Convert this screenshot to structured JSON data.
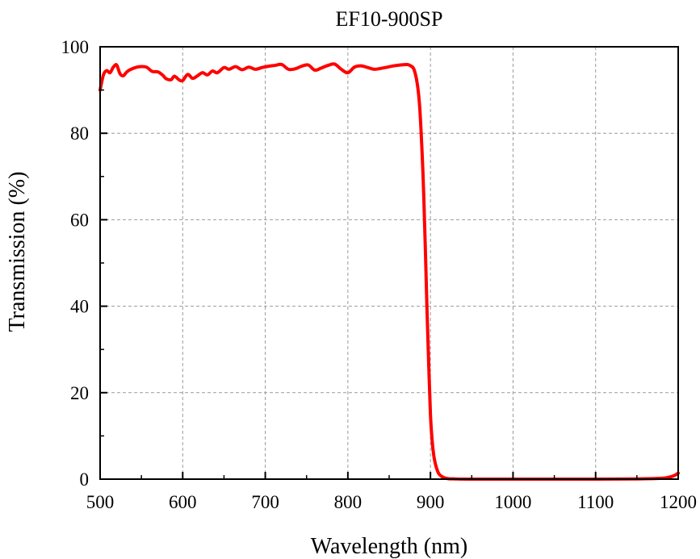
{
  "chart_data": {
    "type": "line",
    "title": "EF10-900SP",
    "xlabel": "Wavelength (nm)",
    "ylabel": "Transmission (%)",
    "xlim": [
      500,
      1200
    ],
    "ylim": [
      0,
      100
    ],
    "x_ticks": [
      500,
      600,
      700,
      800,
      900,
      1000,
      1100,
      1200
    ],
    "y_ticks": [
      0,
      20,
      40,
      60,
      80,
      100
    ],
    "grid": true,
    "series": [
      {
        "color": "#ff0000",
        "x": [
          500,
          504,
          508,
          512,
          516,
          520,
          524,
          528,
          533,
          540,
          548,
          556,
          563,
          570,
          576,
          580,
          586,
          590,
          596,
          600,
          606,
          612,
          618,
          624,
          630,
          636,
          642,
          650,
          656,
          664,
          672,
          680,
          688,
          696,
          704,
          712,
          720,
          728,
          736,
          744,
          752,
          760,
          768,
          776,
          784,
          792,
          800,
          808,
          816,
          824,
          832,
          840,
          848,
          856,
          864,
          872,
          876,
          880,
          884,
          887,
          890,
          892,
          894,
          896,
          898,
          900,
          902,
          904,
          906,
          908,
          910,
          913,
          917,
          922,
          930,
          945,
          1000,
          1100,
          1150,
          1180,
          1190,
          1196,
          1200
        ],
        "y": [
          90,
          93.5,
          94.5,
          94,
          95.3,
          95.8,
          93.8,
          93.3,
          94.3,
          95,
          95.4,
          95.3,
          94.3,
          94.2,
          93.4,
          92.6,
          92.4,
          93.2,
          92.3,
          92.2,
          93.6,
          92.7,
          93.3,
          94,
          93.5,
          94.4,
          94,
          95.2,
          94.8,
          95.4,
          94.7,
          95.3,
          94.8,
          95.2,
          95.5,
          95.7,
          95.9,
          94.8,
          94.9,
          95.5,
          95.8,
          94.6,
          95.1,
          95.7,
          96,
          94.8,
          94,
          95.3,
          95.6,
          95.2,
          94.8,
          95,
          95.3,
          95.6,
          95.8,
          95.9,
          95.6,
          94.8,
          91.5,
          86,
          75,
          65,
          52,
          38,
          26,
          15,
          9,
          5.5,
          3.5,
          2.2,
          1.3,
          0.7,
          0.3,
          0.1,
          0.05,
          0,
          0,
          0,
          0.05,
          0.2,
          0.5,
          0.9,
          1.4
        ]
      }
    ]
  }
}
